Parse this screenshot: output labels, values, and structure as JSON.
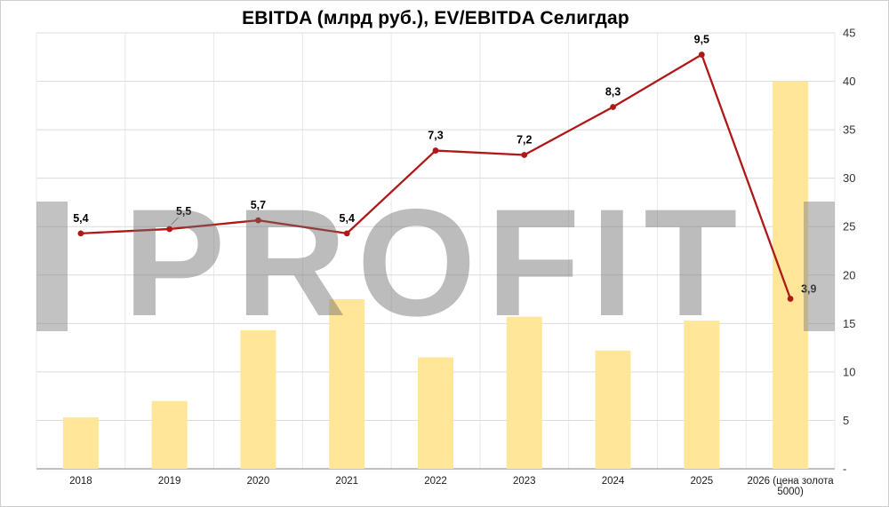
{
  "chart_data": {
    "type": "combo",
    "title": "EBITDA (млрд руб.), EV/EBITDA Селигдар",
    "watermark": "PROFIT",
    "categories": [
      "2018",
      "2019",
      "2020",
      "2021",
      "2022",
      "2023",
      "2024",
      "2025",
      "2026 (цена золота 5000)"
    ],
    "series": [
      {
        "name": "EBITDA (млрд руб.)",
        "type": "bar",
        "axis": "primary",
        "color": "#ffe699",
        "values": [
          5.3,
          7.0,
          14.3,
          17.5,
          11.5,
          15.7,
          12.2,
          15.3,
          40.0
        ]
      },
      {
        "name": "EV/EBITDA",
        "type": "line",
        "axis": "secondary",
        "color": "#b01818",
        "values": [
          5.4,
          5.5,
          5.7,
          5.4,
          7.3,
          7.2,
          8.3,
          9.5,
          3.9
        ],
        "point_labels": [
          "5,4",
          "5,5",
          "5,7",
          "5,4",
          "7,3",
          "7,2",
          "8,3",
          "9,5",
          "3,9"
        ]
      }
    ],
    "primary_axis": {
      "position": "right",
      "min": 0,
      "max": 45,
      "step": 5,
      "tick_labels": [
        "-",
        "5",
        "10",
        "15",
        "20",
        "25",
        "30",
        "35",
        "40",
        "45"
      ]
    },
    "secondary_axis": {
      "min": 0,
      "max": 10,
      "visible": false
    },
    "grid": {
      "horizontal": true,
      "vertical": true,
      "color": "#dcdcdc"
    },
    "legend": "none",
    "label_layout": {
      "1": {
        "dx": 16,
        "dy": -16,
        "leader": true
      },
      "8": {
        "dx": 12,
        "dy": -7,
        "anchor": "start"
      }
    },
    "colors": {
      "background": "#ffffff",
      "title": "#000000",
      "axis_text": "#333333",
      "category_text": "#1a1a1a",
      "zero_line": "#9a9a9a",
      "watermark": "#6c6c6c"
    }
  }
}
